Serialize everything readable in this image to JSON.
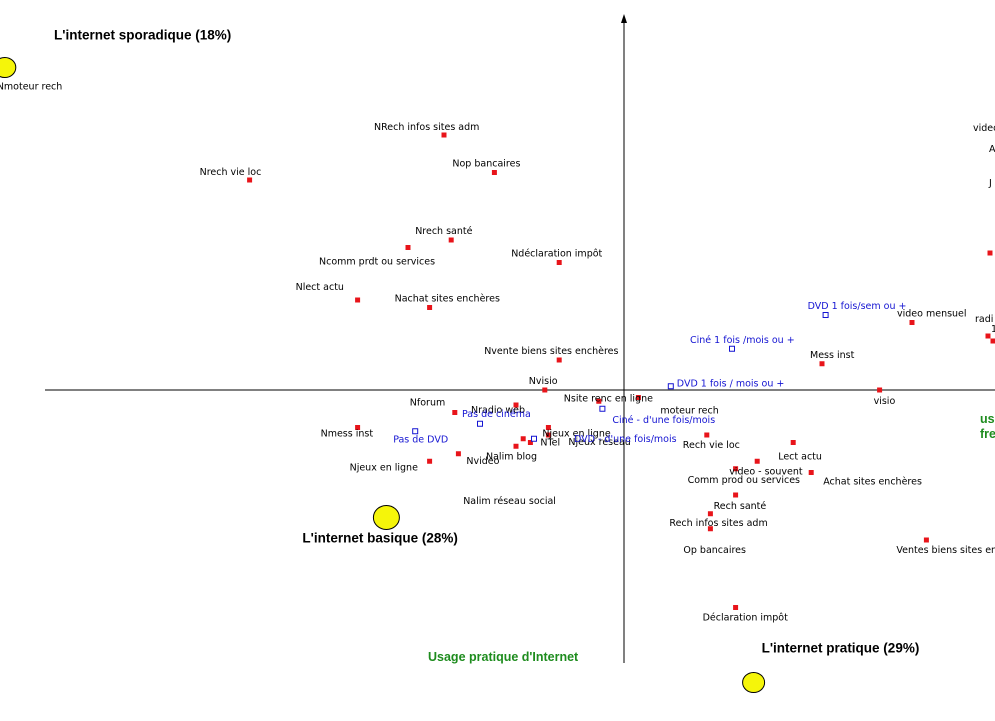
{
  "chart_data": {
    "type": "scatter",
    "title": "",
    "xlabel": "",
    "ylabel": "",
    "axis_title_y": "Usage pratique d'Internet",
    "axis_title_x_fragment": [
      "us",
      "fre"
    ],
    "grid": false,
    "colors": {
      "active": "#e8141a",
      "supplementary": "#1414d2",
      "cluster": "#f5f50a",
      "axis_title": "#1e8c1e"
    },
    "clusters": [
      {
        "label": "L'internet sporadique (18%)",
        "x": -8.6,
        "y": 4.3
      },
      {
        "label": "L'internet basique (28%)",
        "x": -3.3,
        "y": -1.7
      },
      {
        "label": "L'internet pratique (29%)",
        "x": 1.8,
        "y": -3.9
      }
    ],
    "series": [
      {
        "name": "",
        "marker": "filled-square",
        "points": [
          {
            "label": "Nmoteur rech",
            "x": -8.6,
            "y": 4.3
          },
          {
            "label": "NRech infos sites adm",
            "x": -2.5,
            "y": 3.4
          },
          {
            "label": "Nrech vie loc",
            "x": -5.2,
            "y": 2.8
          },
          {
            "label": "Nop bancaires",
            "x": -1.8,
            "y": 2.9
          },
          {
            "label": "Nrech santé",
            "x": -2.4,
            "y": 2.0
          },
          {
            "label": "Ncomm prdt ou services",
            "x": -3.0,
            "y": 1.9
          },
          {
            "label": "Ndéclaration impôt",
            "x": -0.9,
            "y": 1.7
          },
          {
            "label": "Nlect actu",
            "x": -3.7,
            "y": 1.2
          },
          {
            "label": "Nachat sites enchères",
            "x": -2.7,
            "y": 1.1
          },
          {
            "label": "Nvente biens sites enchères",
            "x": -0.9,
            "y": 0.4
          },
          {
            "label": "Nvisio",
            "x": -1.1,
            "y": 0.0
          },
          {
            "label": "Nradio web",
            "x": -1.5,
            "y": -0.2
          },
          {
            "label": "Nsite renc en ligne",
            "x": -0.35,
            "y": -0.15
          },
          {
            "label": "NTel",
            "x": -1.05,
            "y": -0.5
          },
          {
            "label": "moteur rech",
            "x": 0.2,
            "y": -0.1
          },
          {
            "label": "Nforum",
            "x": -2.35,
            "y": -0.3
          },
          {
            "label": "Nmess inst",
            "x": -3.7,
            "y": -0.5
          },
          {
            "label": "Nvideo",
            "x": -2.3,
            "y": -0.85
          },
          {
            "label": "Nalim blog",
            "x": -1.5,
            "y": -0.75
          },
          {
            "label": "Njeux réseau",
            "x": -1.05,
            "y": -0.6
          },
          {
            "label": "Njeux en ligne",
            "x": -2.7,
            "y": -0.95
          },
          {
            "label": "Njeux en ligne",
            "x": -1.3,
            "y": -0.7
          },
          {
            "label": "Nalim réseau social",
            "x": -1.4,
            "y": -0.65
          },
          {
            "label": "Rech vie loc",
            "x": 1.15,
            "y": -0.6
          },
          {
            "label": "Mess inst",
            "x": 2.75,
            "y": 0.35
          },
          {
            "label": "video mensuel",
            "x": 4.0,
            "y": 0.9
          },
          {
            "label": "visio",
            "x": 3.55,
            "y": 0.0
          },
          {
            "label": "Lect actu",
            "x": 2.35,
            "y": -0.7
          },
          {
            "label": "video - souvent",
            "x": 1.85,
            "y": -0.95
          },
          {
            "label": "Comm prod ou services",
            "x": 1.55,
            "y": -1.05
          },
          {
            "label": "Achat sites enchères",
            "x": 2.6,
            "y": -1.1
          },
          {
            "label": "Rech santé",
            "x": 1.55,
            "y": -1.4
          },
          {
            "label": "Rech infos sites adm",
            "x": 1.2,
            "y": -1.65
          },
          {
            "label": "Op bancaires",
            "x": 1.2,
            "y": -1.85
          },
          {
            "label": "Ventes biens sites enchères",
            "x": 4.2,
            "y": -2.0
          },
          {
            "label": "Déclaration impôt",
            "x": 1.55,
            "y": -2.9
          }
        ]
      },
      {
        "name": "",
        "marker": "hollow-square",
        "points": [
          {
            "label": "DVD 1 fois/sem ou +",
            "x": 2.8,
            "y": 1.0
          },
          {
            "label": "Ciné 1 fois /mois ou +",
            "x": 1.5,
            "y": 0.55
          },
          {
            "label": "DVD 1 fois / mois ou +",
            "x": 0.65,
            "y": 0.05
          },
          {
            "label": "Ciné - d'une fois/mois",
            "x": -0.3,
            "y": -0.25
          },
          {
            "label": "Pas de cinéma",
            "x": -2.0,
            "y": -0.45
          },
          {
            "label": "DVD - d'une fois/mois",
            "x": -1.25,
            "y": -0.65
          },
          {
            "label": "Pas de DVD",
            "x": -2.9,
            "y": -0.55
          }
        ]
      }
    ],
    "cut_labels": [
      "video",
      "A",
      "J",
      "radi",
      "1"
    ],
    "xlim": [
      -9.5,
      5.5
    ],
    "ylim": [
      -4.7,
      5.2
    ]
  }
}
